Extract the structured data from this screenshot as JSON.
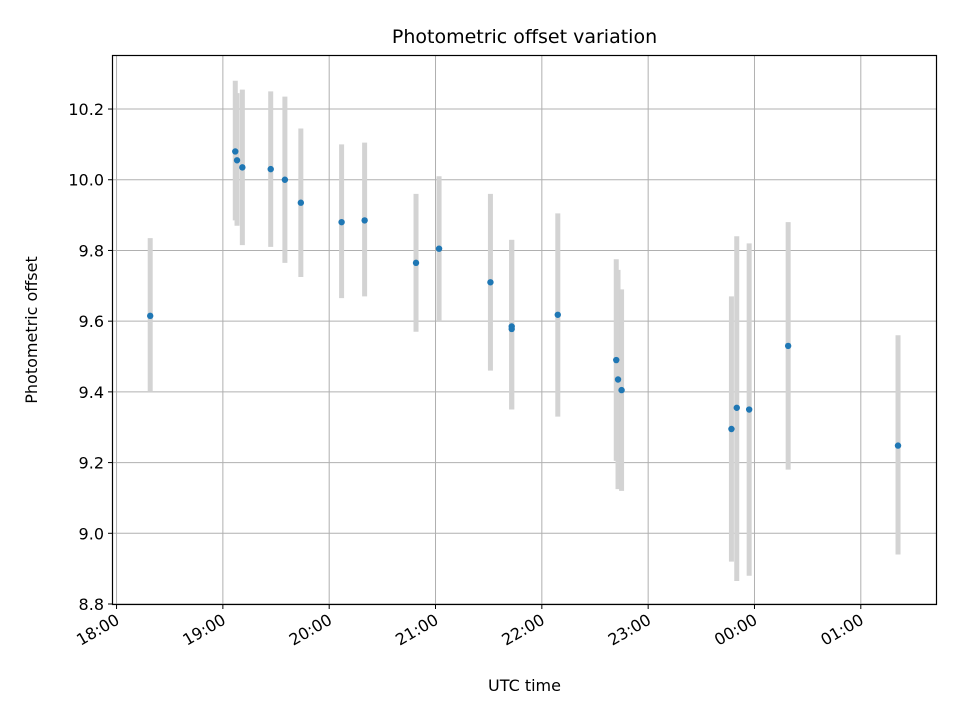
{
  "chart_data": {
    "type": "scatter",
    "title": "Photometric offset variation",
    "xlabel": "UTC time",
    "ylabel": "Photometric offset",
    "grid": true,
    "colors": {
      "point": "#1f77b4",
      "errorbar": "#d3d3d3",
      "grid": "#b0b0b0"
    },
    "xlim": [
      "2024-01-01T17:58",
      "2024-01-02T01:43"
    ],
    "ylim": [
      8.8,
      10.35
    ],
    "xticks": [
      "2024-01-01T18:00",
      "2024-01-01T19:00",
      "2024-01-01T20:00",
      "2024-01-01T21:00",
      "2024-01-01T22:00",
      "2024-01-01T23:00",
      "2024-01-02T00:00",
      "2024-01-02T01:00"
    ],
    "xtick_labels": [
      "18:00",
      "19:00",
      "20:00",
      "21:00",
      "22:00",
      "23:00",
      "00:00",
      "01:00"
    ],
    "yticks": [
      8.8,
      9.0,
      9.2,
      9.4,
      9.6,
      9.8,
      10.0,
      10.2
    ],
    "ytick_labels": [
      "8.8",
      "9.0",
      "9.2",
      "9.4",
      "9.6",
      "9.8",
      "10.0",
      "10.2"
    ],
    "series": [
      {
        "points": [
          {
            "x": "2024-01-01T18:19",
            "y": 9.615,
            "ylow": 9.4,
            "yhigh": 9.835
          },
          {
            "x": "2024-01-01T19:07",
            "y": 10.08,
            "ylow": 9.885,
            "yhigh": 10.28
          },
          {
            "x": "2024-01-01T19:08",
            "y": 10.055,
            "ylow": 9.87,
            "yhigh": 10.245
          },
          {
            "x": "2024-01-01T19:11",
            "y": 10.035,
            "ylow": 9.815,
            "yhigh": 10.255
          },
          {
            "x": "2024-01-01T19:27",
            "y": 10.03,
            "ylow": 9.81,
            "yhigh": 10.25
          },
          {
            "x": "2024-01-01T19:35",
            "y": 10.0,
            "ylow": 9.765,
            "yhigh": 10.235
          },
          {
            "x": "2024-01-01T19:44",
            "y": 9.935,
            "ylow": 9.725,
            "yhigh": 10.145
          },
          {
            "x": "2024-01-01T20:07",
            "y": 9.88,
            "ylow": 9.665,
            "yhigh": 10.1
          },
          {
            "x": "2024-01-01T20:20",
            "y": 9.885,
            "ylow": 9.67,
            "yhigh": 10.105
          },
          {
            "x": "2024-01-01T20:49",
            "y": 9.765,
            "ylow": 9.57,
            "yhigh": 9.96
          },
          {
            "x": "2024-01-01T21:02",
            "y": 9.805,
            "ylow": 9.6,
            "yhigh": 10.01
          },
          {
            "x": "2024-01-01T21:31",
            "y": 9.71,
            "ylow": 9.46,
            "yhigh": 9.96
          },
          {
            "x": "2024-01-01T21:43",
            "y": 9.585,
            "ylow": 9.35,
            "yhigh": 9.83
          },
          {
            "x": "2024-01-01T21:43",
            "y": 9.578,
            "ylow": 9.35,
            "yhigh": 9.83
          },
          {
            "x": "2024-01-01T22:09",
            "y": 9.618,
            "ylow": 9.33,
            "yhigh": 9.905
          },
          {
            "x": "2024-01-01T22:42",
            "y": 9.49,
            "ylow": 9.205,
            "yhigh": 9.775
          },
          {
            "x": "2024-01-01T22:43",
            "y": 9.435,
            "ylow": 9.125,
            "yhigh": 9.745
          },
          {
            "x": "2024-01-01T22:45",
            "y": 9.405,
            "ylow": 9.12,
            "yhigh": 9.69
          },
          {
            "x": "2024-01-01T23:47",
            "y": 9.295,
            "ylow": 8.92,
            "yhigh": 9.67
          },
          {
            "x": "2024-01-01T23:50",
            "y": 9.355,
            "ylow": 8.865,
            "yhigh": 9.84
          },
          {
            "x": "2024-01-01T23:57",
            "y": 9.35,
            "ylow": 8.88,
            "yhigh": 9.82
          },
          {
            "x": "2024-01-02T00:19",
            "y": 9.53,
            "ylow": 9.18,
            "yhigh": 9.88
          },
          {
            "x": "2024-01-02T01:21",
            "y": 9.248,
            "ylow": 8.94,
            "yhigh": 9.56
          }
        ]
      }
    ]
  }
}
